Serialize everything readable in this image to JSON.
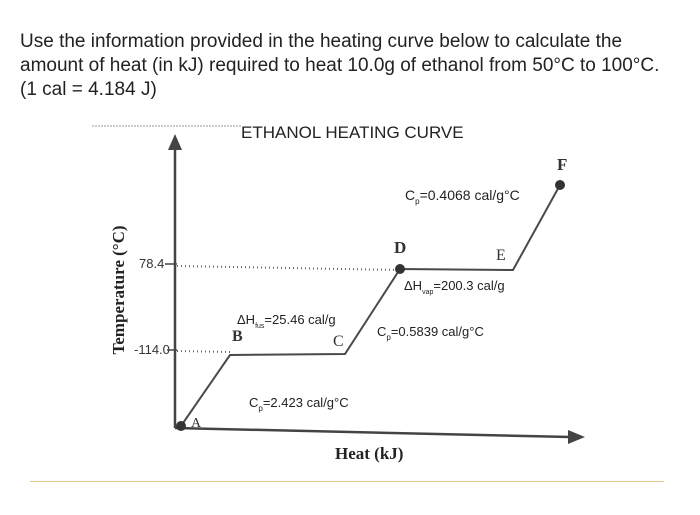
{
  "question": {
    "line1": "Use the information provided in the heating curve below to calculate the",
    "line2": "amount of heat (in kJ) required to heat 10.0g of ethanol from 50°C to 100°C.",
    "line3": "(1 cal = 4.184 J)"
  },
  "figure": {
    "title": "ETHANOL HEATING CURVE",
    "y_axis_label": "Temperature (°C)",
    "x_axis_label": "Heat (kJ)",
    "tick_upper": "78.4",
    "tick_lower": "-114.0",
    "points": {
      "a": "A",
      "b": "B",
      "c": "C",
      "d": "D",
      "e": "E",
      "f": "F"
    },
    "annotations": {
      "cp_solid": {
        "prefix": "C",
        "sub": "p",
        "value": "=2.423 cal/g°C"
      },
      "dh_fus": {
        "prefix": "ΔH",
        "sub": "fus",
        "value": "=25.46 cal/g"
      },
      "cp_liquid": {
        "prefix": "C",
        "sub": "p",
        "value": "=0.5839 cal/g°C"
      },
      "dh_vap": {
        "prefix": "ΔH",
        "sub": "vap",
        "value": "=200.3 cal/g"
      },
      "cp_gas": {
        "prefix": "C",
        "sub": "p",
        "value": "=0.4068 cal/g°C"
      }
    },
    "colors": {
      "line": "#4a4a4a",
      "point": "#333333",
      "dotted": "#666666"
    }
  }
}
